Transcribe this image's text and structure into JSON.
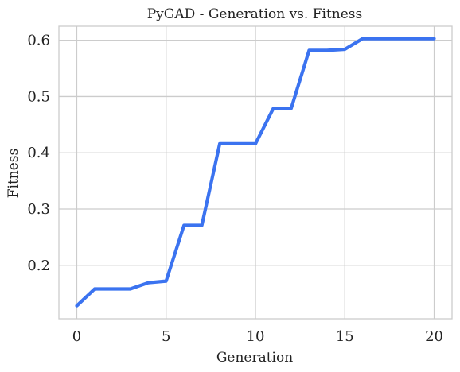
{
  "chart_data": {
    "type": "line",
    "title": "PyGAD - Generation vs. Fitness",
    "xlabel": "Generation",
    "ylabel": "Fitness",
    "xlim": [
      -1,
      21
    ],
    "ylim": [
      0.105,
      0.625
    ],
    "xticks": [
      0,
      5,
      10,
      15,
      20
    ],
    "yticks": [
      0.2,
      0.3,
      0.4,
      0.5,
      0.6
    ],
    "xtick_labels": [
      "0",
      "5",
      "10",
      "15",
      "20"
    ],
    "ytick_labels": [
      "0.2",
      "0.3",
      "0.4",
      "0.5",
      "0.6"
    ],
    "grid": true,
    "line_color": "#3b73f0",
    "series": [
      {
        "x": [
          0,
          1,
          2,
          3,
          4,
          5,
          6,
          7,
          8,
          9,
          10,
          11,
          12,
          13,
          14,
          15,
          16,
          17,
          18,
          19,
          20
        ],
        "values": [
          0.128,
          0.158,
          0.158,
          0.158,
          0.169,
          0.172,
          0.271,
          0.271,
          0.416,
          0.416,
          0.416,
          0.479,
          0.479,
          0.582,
          0.582,
          0.584,
          0.603,
          0.603,
          0.603,
          0.603,
          0.603
        ]
      }
    ]
  }
}
